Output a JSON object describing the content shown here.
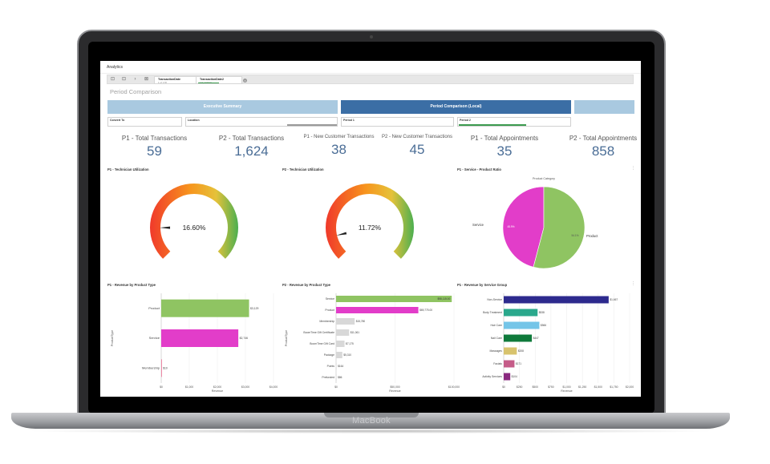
{
  "device": {
    "brand": "MacBook"
  },
  "app": {
    "title": "Analytics",
    "sheet_title": "Period Comparison"
  },
  "selections": [
    {
      "field": "TransactionDate",
      "value": "1 of 178"
    },
    {
      "field": "TransactionDate2",
      "value": "1/1, 4:00 P..."
    }
  ],
  "sections": [
    {
      "label": "Executive Summary",
      "color": "#a9c9e0"
    },
    {
      "label": "Period Comparison (Local)",
      "color": "#3b6ea5"
    },
    {
      "label": "",
      "color": "#a9c9e0"
    }
  ],
  "filters": [
    {
      "label": "Convert To"
    },
    {
      "label": "Location"
    },
    {
      "label": "Period 1"
    },
    {
      "label": "Period 2"
    }
  ],
  "kpis": [
    {
      "label": "P1 - Total Transactions",
      "value": "59"
    },
    {
      "label": "P2 - Total Transactions",
      "value": "1,624"
    },
    {
      "label": "P1 - New Customer Transactions",
      "value": "38"
    },
    {
      "label": "P2 - New Customer Transactions",
      "value": "45"
    },
    {
      "label": "P1 - Total Appointments",
      "value": "35"
    },
    {
      "label": "P2 - Total Appointments",
      "value": "858"
    }
  ],
  "panels": {
    "gauge1_title": "P1 - Technician Utilization",
    "gauge2_title": "P2 - Technician Utilization",
    "pie_title": "P1 - Service - Product Ratio",
    "bar1_title": "P1 - Revenue by Product Type",
    "bar2_title": "P2 - Revenue by Product Type",
    "bar3_title": "P1 - Revenue by Service Group"
  },
  "chart_data": [
    {
      "type": "gauge",
      "title": "P1 - Technician Utilization",
      "value": 16.6,
      "value_label": "16.60%",
      "range": [
        0,
        100
      ]
    },
    {
      "type": "gauge",
      "title": "P2 - Technician Utilization",
      "value": 11.72,
      "value_label": "11.72%",
      "range": [
        0,
        100
      ]
    },
    {
      "type": "pie",
      "title": "P1 - Service - Product Ratio",
      "legend_title": "Product Category",
      "slices": [
        {
          "label": "Service",
          "value": 45.9,
          "value_label": "45.9%",
          "color": "#e23dc9"
        },
        {
          "label": "Product",
          "value": 54.1,
          "value_label": "54.1%",
          "color": "#8fc462"
        }
      ]
    },
    {
      "type": "bar",
      "orientation": "horizontal",
      "title": "P1 - Revenue by Product Type",
      "xlabel": "Revenue",
      "ylabel": "ProductType",
      "xlim": [
        0,
        4000
      ],
      "xticks": [
        "$0",
        "$1,000",
        "$2,000",
        "$3,000",
        "$4,000"
      ],
      "categories": [
        "Product",
        "Service",
        "Membership"
      ],
      "values": [
        3129,
        2746,
        10
      ],
      "value_labels": [
        "$3,129",
        "$2,746",
        "$10"
      ],
      "colors": [
        "#8fc462",
        "#e23dc9",
        "#e23b6a"
      ]
    },
    {
      "type": "bar",
      "orientation": "horizontal",
      "title": "P2 - Revenue by Product Type",
      "xlabel": "Revenue",
      "ylabel": "ProductType",
      "xlim": [
        0,
        100000
      ],
      "xticks": [
        "$0",
        "$50,000",
        "$100,000"
      ],
      "categories": [
        "Service",
        "Product",
        "Membership",
        "BoomTime Gift Certificate",
        "BoomTime Gift Card",
        "Package",
        "Points",
        "Prefunded"
      ],
      "values": [
        98115,
        69775,
        15780,
        11061,
        7175,
        5310,
        164,
        86
      ],
      "value_labels": [
        "$98,115.00",
        "$69,775.00",
        "$15,780",
        "$11,061",
        "$7,175",
        "$5,310",
        "$164",
        "$86"
      ],
      "colors": [
        "#8fc462",
        "#e23dc9",
        "#d8d8d8",
        "#d8d8d8",
        "#d8d8d8",
        "#d8d8d8",
        "#d8d8d8",
        "#d8d8d8"
      ]
    },
    {
      "type": "bar",
      "orientation": "horizontal",
      "title": "P1 - Revenue by Service Group",
      "xlabel": "Revenue",
      "ylabel": "",
      "xlim": [
        0,
        2000
      ],
      "xticks": [
        "$0",
        "$500",
        "$1,000",
        "$1,500",
        "$2,000"
      ],
      "tick_values": [
        0,
        250,
        500,
        750,
        1000,
        1250,
        1500,
        1750,
        2000
      ],
      "tick_labels": [
        "$0",
        "$250",
        "$500",
        "$750",
        "$1,000",
        "$1,250",
        "$1,500",
        "$1,750",
        "$2,000"
      ],
      "categories": [
        "Non-Service",
        "Body Treatment",
        "Hair Care",
        "Nail Care",
        "Massages",
        "Facials",
        "Activity Services"
      ],
      "values": [
        1667,
        538,
        566,
        447,
        208,
        171,
        104
      ],
      "value_labels": [
        "$1,667",
        "$538",
        "$566",
        "$447",
        "$208",
        "$171",
        "$104"
      ],
      "colors": [
        "#2d2a8e",
        "#2aa88c",
        "#74c5e8",
        "#0f7a3b",
        "#d8c36d",
        "#c55c88",
        "#8a2a7f"
      ]
    }
  ]
}
